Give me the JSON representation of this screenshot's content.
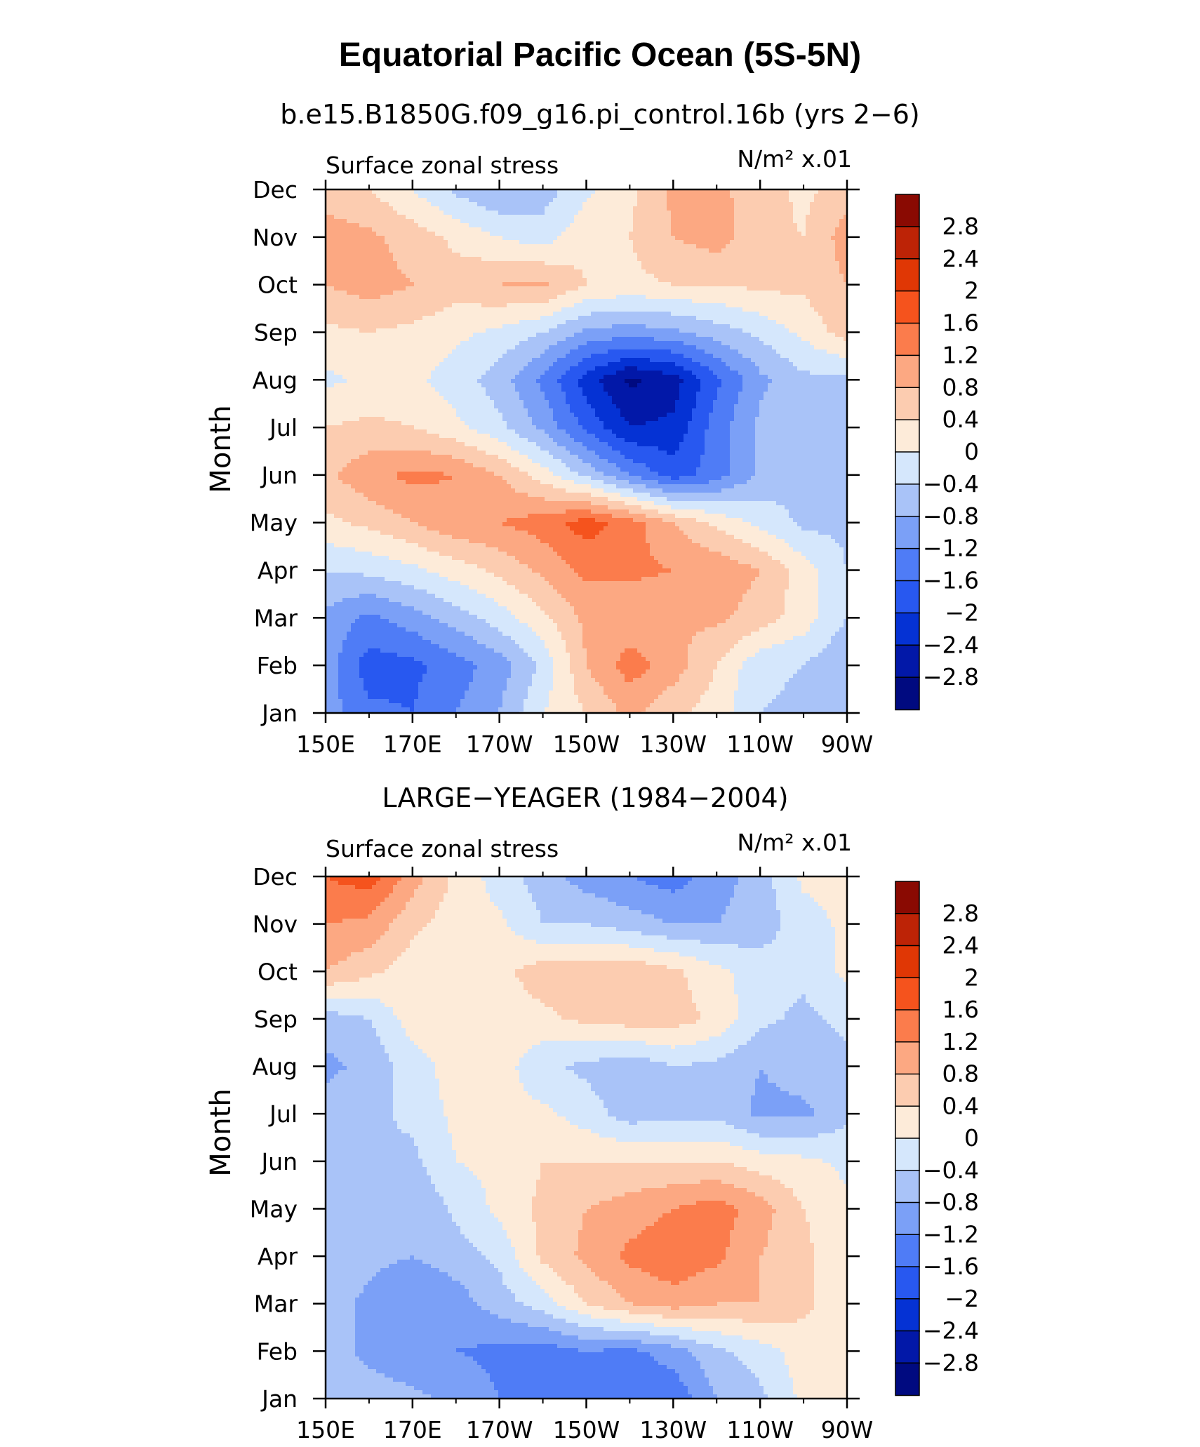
{
  "figure_title": "Equatorial Pacific Ocean (5S-5N)",
  "panels": [
    {
      "subtitle": "b.e15.B1850G.f09_g16.pi_control.16b (yrs 2−6)",
      "variable_label": "Surface zonal stress",
      "units_label": "N/m² x.01",
      "ylabel": "Month"
    },
    {
      "subtitle": "LARGE−YEAGER (1984−2004)",
      "variable_label": "Surface zonal stress",
      "units_label": "N/m² x.01",
      "ylabel": "Month"
    }
  ],
  "chart_data": [
    {
      "type": "heatmap",
      "title": "b.e15.B1850G.f09_g16.pi_control.16b (yrs 2−6)",
      "xlabel": "",
      "ylabel": "Month",
      "x_ticks": [
        "150E",
        "170E",
        "170W",
        "150W",
        "130W",
        "110W",
        "90W"
      ],
      "y_ticks": [
        "Jan",
        "Feb",
        "Mar",
        "Apr",
        "May",
        "Jun",
        "Jul",
        "Aug",
        "Sep",
        "Oct",
        "Nov",
        "Dec"
      ],
      "x_lon": [
        150,
        170,
        190,
        210,
        230,
        250,
        270
      ],
      "xlim": [
        150,
        270
      ],
      "ylim": [
        1,
        12
      ],
      "colorbar_labels": [
        "2.8",
        "2.4",
        "2",
        "1.6",
        "1.2",
        "0.8",
        "0.4",
        "0",
        "−0.4",
        "−0.8",
        "−1.2",
        "−1.6",
        "−2",
        "−2.4",
        "−2.8"
      ],
      "grid_lon": [
        150,
        160,
        170,
        180,
        190,
        200,
        210,
        220,
        230,
        240,
        250,
        260,
        270
      ],
      "grid_month": [
        1,
        2,
        3,
        4,
        5,
        6,
        7,
        8,
        9,
        10,
        11,
        12
      ],
      "values": [
        [
          -1.0,
          -1.5,
          -1.6,
          -1.2,
          -0.8,
          0.0,
          0.4,
          0.9,
          0.5,
          0.2,
          -0.4,
          -0.5,
          -0.8
        ],
        [
          -1.0,
          -1.8,
          -1.7,
          -1.4,
          -1.0,
          -0.3,
          0.8,
          1.4,
          1.0,
          0.4,
          -0.3,
          -0.4,
          -0.8
        ],
        [
          -0.9,
          -1.3,
          -1.0,
          -0.6,
          -0.2,
          0.3,
          0.9,
          0.9,
          0.8,
          0.9,
          0.6,
          0.2,
          -0.4
        ],
        [
          -0.4,
          -0.3,
          -0.1,
          0.2,
          0.5,
          0.9,
          1.3,
          1.3,
          1.2,
          1.1,
          0.8,
          0.2,
          -0.4
        ],
        [
          0.3,
          0.5,
          0.8,
          1.1,
          1.2,
          1.4,
          1.8,
          1.4,
          0.8,
          0.3,
          -0.1,
          -0.5,
          -0.5
        ],
        [
          0.7,
          1.1,
          1.3,
          1.2,
          0.8,
          0.2,
          -0.5,
          -1.2,
          -1.8,
          -1.4,
          -0.7,
          -0.5,
          -0.5
        ],
        [
          0.4,
          0.5,
          0.4,
          0.1,
          -0.3,
          -0.9,
          -1.7,
          -2.4,
          -2.3,
          -1.4,
          -0.7,
          -0.5,
          -0.5
        ],
        [
          -0.1,
          0.1,
          0.1,
          -0.2,
          -0.6,
          -1.3,
          -2.2,
          -2.9,
          -2.6,
          -1.7,
          -0.9,
          -0.5,
          -0.5
        ],
        [
          0.3,
          0.4,
          0.3,
          0.1,
          -0.1,
          -0.4,
          -0.9,
          -1.0,
          -0.9,
          -0.6,
          -0.3,
          0.1,
          0.6
        ],
        [
          0.8,
          1.0,
          0.8,
          0.6,
          0.8,
          0.9,
          0.4,
          0.3,
          0.4,
          0.4,
          0.5,
          0.5,
          0.8
        ],
        [
          1.0,
          0.9,
          0.6,
          0.3,
          0.0,
          -0.2,
          0.3,
          0.4,
          0.8,
          1.0,
          0.5,
          0.4,
          1.0
        ],
        [
          0.6,
          0.4,
          0.0,
          -0.5,
          -0.8,
          -0.6,
          -0.1,
          0.3,
          0.9,
          0.9,
          0.6,
          0.3,
          0.6
        ]
      ]
    },
    {
      "type": "heatmap",
      "title": "LARGE−YEAGER (1984−2004)",
      "xlabel": "",
      "ylabel": "Month",
      "x_ticks": [
        "150E",
        "170E",
        "170W",
        "150W",
        "130W",
        "110W",
        "90W"
      ],
      "y_ticks": [
        "Jan",
        "Feb",
        "Mar",
        "Apr",
        "May",
        "Jun",
        "Jul",
        "Aug",
        "Sep",
        "Oct",
        "Nov",
        "Dec"
      ],
      "x_lon": [
        150,
        170,
        190,
        210,
        230,
        250,
        270
      ],
      "xlim": [
        150,
        270
      ],
      "ylim": [
        1,
        12
      ],
      "colorbar_labels": [
        "2.8",
        "2.4",
        "2",
        "1.6",
        "1.2",
        "0.8",
        "0.4",
        "0",
        "−0.4",
        "−0.8",
        "−1.2",
        "−1.6",
        "−2",
        "−2.4",
        "−2.8"
      ],
      "grid_lon": [
        150,
        160,
        170,
        180,
        190,
        200,
        210,
        220,
        230,
        240,
        250,
        260,
        270
      ],
      "grid_month": [
        1,
        2,
        3,
        4,
        5,
        6,
        7,
        8,
        9,
        10,
        11,
        12
      ],
      "values": [
        [
          -0.5,
          -0.6,
          -0.7,
          -0.9,
          -1.2,
          -1.6,
          -1.3,
          -1.6,
          -1.5,
          -0.8,
          -0.5,
          0.1,
          0.2
        ],
        [
          -0.6,
          -0.9,
          -1.1,
          -1.2,
          -1.3,
          -1.4,
          -1.2,
          -1.3,
          -1.0,
          -0.5,
          -0.2,
          0.2,
          0.2
        ],
        [
          -0.6,
          -0.9,
          -1.2,
          -1.0,
          -0.6,
          -0.2,
          0.4,
          0.8,
          1.0,
          0.8,
          0.8,
          0.5,
          0.1
        ],
        [
          -0.5,
          -0.7,
          -0.8,
          -0.6,
          -0.3,
          0.5,
          0.9,
          1.3,
          1.5,
          1.3,
          0.8,
          0.5,
          0.1
        ],
        [
          -0.5,
          -0.6,
          -0.8,
          -0.3,
          0.1,
          0.5,
          0.8,
          1.0,
          1.2,
          1.4,
          1.0,
          0.4,
          0.1
        ],
        [
          -0.4,
          -0.5,
          -0.5,
          0.0,
          0.1,
          0.4,
          0.4,
          0.4,
          0.4,
          0.4,
          0.2,
          0.1,
          -0.1
        ],
        [
          -0.6,
          -0.5,
          -0.3,
          0.1,
          0.1,
          0.1,
          -0.2,
          -0.6,
          -0.5,
          -0.5,
          -0.9,
          -0.9,
          -0.5
        ],
        [
          -0.9,
          -0.7,
          -0.2,
          0.2,
          0.2,
          -0.3,
          -0.5,
          -0.7,
          -0.4,
          -0.5,
          -0.8,
          -0.6,
          -0.5
        ],
        [
          -0.6,
          -0.4,
          0.2,
          0.2,
          0.2,
          0.3,
          0.5,
          0.6,
          0.6,
          0.3,
          -0.3,
          -0.5,
          -0.3
        ],
        [
          0.8,
          0.5,
          0.2,
          0.2,
          0.3,
          0.6,
          0.6,
          0.7,
          0.5,
          0.1,
          -0.2,
          -0.3,
          0.1
        ],
        [
          1.2,
          1.1,
          0.5,
          0.2,
          0.1,
          -0.4,
          -0.4,
          -0.6,
          -0.8,
          -0.8,
          -0.6,
          -0.2,
          0.1
        ],
        [
          1.6,
          1.8,
          1.0,
          0.3,
          -0.2,
          -0.6,
          -1.0,
          -1.2,
          -1.4,
          -1.0,
          -0.6,
          0.1,
          0.2
        ]
      ]
    }
  ],
  "colors": {
    "levels": [
      -3.2,
      -2.8,
      -2.4,
      -2.0,
      -1.6,
      -1.2,
      -0.8,
      -0.4,
      0.0,
      0.4,
      0.8,
      1.2,
      1.6,
      2.0,
      2.4,
      2.8,
      3.2
    ],
    "palette": [
      "#000a80",
      "#0218a8",
      "#0532d4",
      "#2858f0",
      "#4f7cf6",
      "#7ba0f7",
      "#a9c3f8",
      "#d5e7fc",
      "#fdebd9",
      "#fcccb0",
      "#fca882",
      "#fb7c4c",
      "#f5531d",
      "#e03705",
      "#bd2306",
      "#8a0a02"
    ]
  }
}
